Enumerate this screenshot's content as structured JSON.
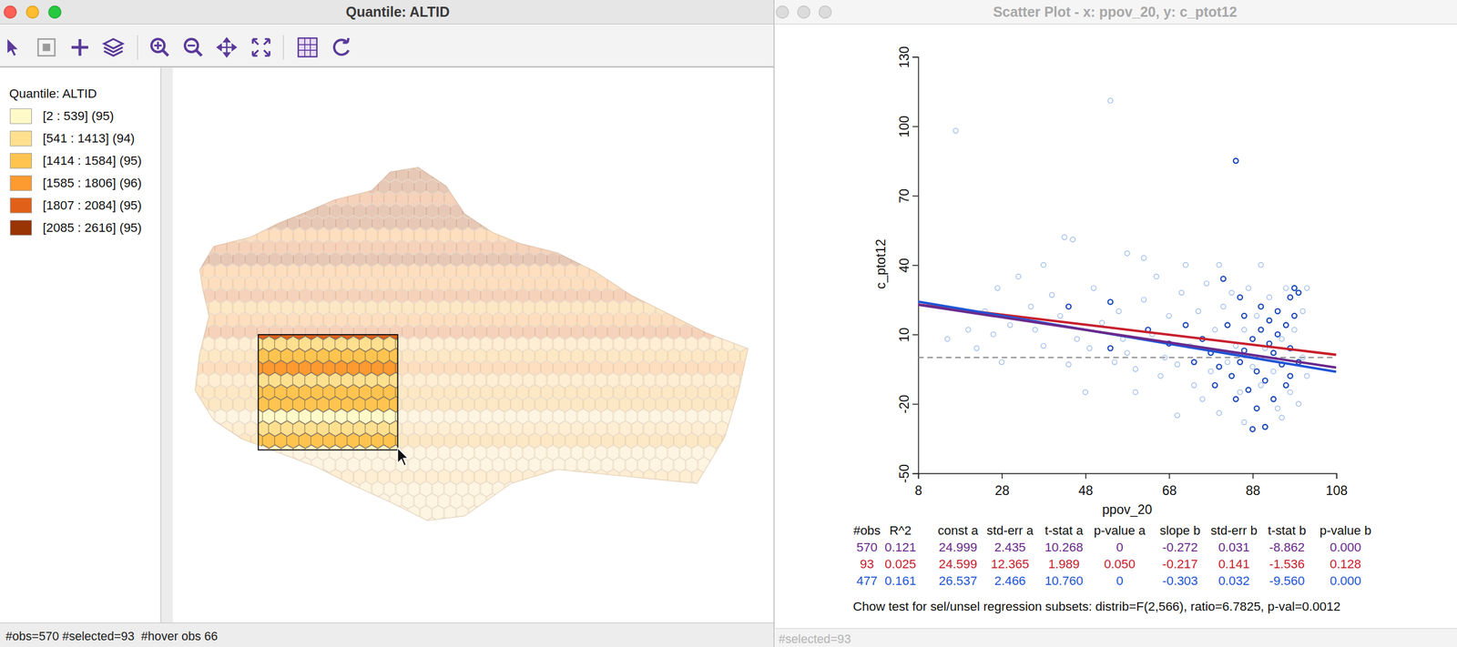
{
  "map_window": {
    "title": "Quantile: ALTID",
    "legend_title": "Quantile: ALTID",
    "legend": [
      {
        "label": "[2 : 539] (95)",
        "color": "#fffac8"
      },
      {
        "label": "[541 : 1413] (94)",
        "color": "#fee08f"
      },
      {
        "label": "[1414 : 1584] (95)",
        "color": "#fec44f"
      },
      {
        "label": "[1585 : 1806] (96)",
        "color": "#fd9a30"
      },
      {
        "label": "[1807 : 2084] (95)",
        "color": "#e0601a"
      },
      {
        "label": "[2085 : 2616] (95)",
        "color": "#993404"
      }
    ],
    "status": "#obs=570 #selected=93  #hover obs 66"
  },
  "scatter_window": {
    "title": "Scatter Plot - x: ppov_20, y: c_ptot12",
    "status": "#selected=93",
    "table": {
      "header": [
        "#obs",
        "R^2",
        "const a",
        "std-err a",
        "t-stat a",
        "p-value a",
        "slope b",
        "std-err b",
        "t-stat b",
        "p-value b"
      ],
      "rows": [
        {
          "color": "#6a2a8c",
          "cells": [
            "570",
            "0.121",
            "24.999",
            "2.435",
            "10.268",
            "0",
            "-0.272",
            "0.031",
            "-8.862",
            "0.000"
          ]
        },
        {
          "color": "#c8202e",
          "cells": [
            "93",
            "0.025",
            "24.599",
            "12.365",
            "1.989",
            "0.050",
            "-0.217",
            "0.141",
            "-1.536",
            "0.128"
          ]
        },
        {
          "color": "#1f55d6",
          "cells": [
            "477",
            "0.161",
            "26.537",
            "2.466",
            "10.760",
            "0",
            "-0.303",
            "0.032",
            "-9.560",
            "0.000"
          ]
        }
      ]
    },
    "chow_test": "Chow test for sel/unsel regression subsets: distrib=F(2,566), ratio=6.7825, p-val=0.0012"
  },
  "chart_data": {
    "type": "scatter",
    "x_label": "ppov_20",
    "y_label": "c_ptot12",
    "xlim": [
      8,
      108
    ],
    "ylim": [
      -50,
      130
    ],
    "xticks": [
      8,
      28,
      48,
      68,
      88,
      108
    ],
    "yticks": [
      -50,
      -20,
      10,
      40,
      70,
      100,
      130
    ],
    "hline": 0,
    "series": [
      {
        "color": "#a8c2ea",
        "marker": "open-circle",
        "x": [
          17,
          54,
          43,
          45,
          58,
          38,
          32,
          27,
          24,
          20,
          15,
          22,
          30,
          35,
          40,
          42,
          46,
          50,
          52,
          56,
          58,
          60,
          62,
          64,
          66,
          68,
          70,
          71,
          73,
          74,
          75,
          76,
          77,
          78,
          79,
          80,
          81,
          82,
          83,
          84,
          85,
          86,
          87,
          88,
          89,
          90,
          91,
          92,
          93,
          94,
          95,
          96,
          97,
          98,
          99,
          100,
          100,
          101,
          101,
          60,
          48,
          65,
          55,
          44,
          38,
          28,
          26,
          70,
          72,
          80,
          90,
          62,
          86,
          95,
          67,
          57,
          49,
          36
        ],
        "values": [
          98,
          111,
          52,
          51,
          45,
          40,
          35,
          30,
          20,
          12,
          8,
          4,
          14,
          22,
          27,
          18,
          8,
          30,
          15,
          20,
          2,
          -5,
          25,
          10,
          -8,
          18,
          -3,
          28,
          5,
          -12,
          20,
          -18,
          32,
          -6,
          12,
          -24,
          22,
          -2,
          28,
          5,
          -15,
          12,
          30,
          -4,
          18,
          -12,
          4,
          26,
          -6,
          -22,
          8,
          30,
          -15,
          12,
          -20,
          20,
          0,
          -8,
          30,
          -15,
          -15,
          35,
          -2,
          -3,
          5,
          -2,
          10,
          -25,
          40,
          40,
          40,
          43,
          -28,
          -26,
          0,
          8,
          4,
          12
        ]
      },
      {
        "color": "#1846b8",
        "marker": "open-circle",
        "x": [
          84,
          81,
          54,
          44,
          54,
          63,
          98,
          99,
          97,
          88,
          91,
          96,
          97,
          95,
          93,
          92,
          94,
          96,
          98,
          90,
          88,
          86,
          85,
          89,
          91,
          87,
          83,
          80,
          78,
          76,
          82,
          86,
          90,
          94,
          97,
          99,
          93,
          89,
          84,
          79,
          74,
          72,
          68,
          85,
          92
        ],
        "values": [
          85,
          34,
          24,
          22,
          4,
          12,
          30,
          28,
          26,
          -31,
          -30,
          -12,
          -8,
          -3,
          2,
          6,
          10,
          14,
          18,
          12,
          8,
          3,
          -2,
          -6,
          -10,
          -14,
          -8,
          -4,
          2,
          8,
          14,
          18,
          22,
          20,
          4,
          -2,
          -18,
          -22,
          -18,
          -12,
          -2,
          14,
          6,
          26,
          16
        ]
      }
    ]
  }
}
